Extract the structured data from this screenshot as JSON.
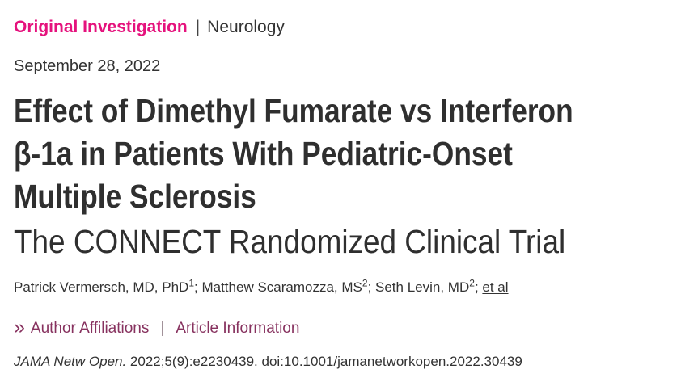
{
  "eyebrow": {
    "category": "Original Investigation",
    "separator": "|",
    "topic": "Neurology",
    "category_color": "#e5127d"
  },
  "date": "September 28, 2022",
  "title": {
    "lines": [
      "Effect of Dimethyl Fumarate vs Interferon",
      "β-1a in Patients With Pediatric-Onset",
      "Multiple Sclerosis"
    ],
    "full": "Effect of Dimethyl Fumarate vs Interferon β-1a in Patients With Pediatric-Onset Multiple Sclerosis",
    "subtitle": "The CONNECT Randomized Clinical Trial"
  },
  "authors": {
    "list": [
      {
        "name": "Patrick Vermersch, MD, PhD",
        "affiliation_sup": "1"
      },
      {
        "name": "Matthew Scaramozza, MS",
        "affiliation_sup": "2"
      },
      {
        "name": "Seth Levin, MD",
        "affiliation_sup": "2"
      }
    ],
    "separator": "; ",
    "et_al_label": "et al"
  },
  "links": {
    "chevron_icon": "double-chevron-right",
    "chevron_glyph": "»",
    "author_affiliations_label": "Author Affiliations",
    "separator": "|",
    "article_information_label": "Article Information",
    "link_color": "#87325f"
  },
  "citation": {
    "journal": "JAMA Netw Open.",
    "detail": " 2022;5(9):e2230439. doi:10.1001/jamanetworkopen.2022.30439"
  }
}
